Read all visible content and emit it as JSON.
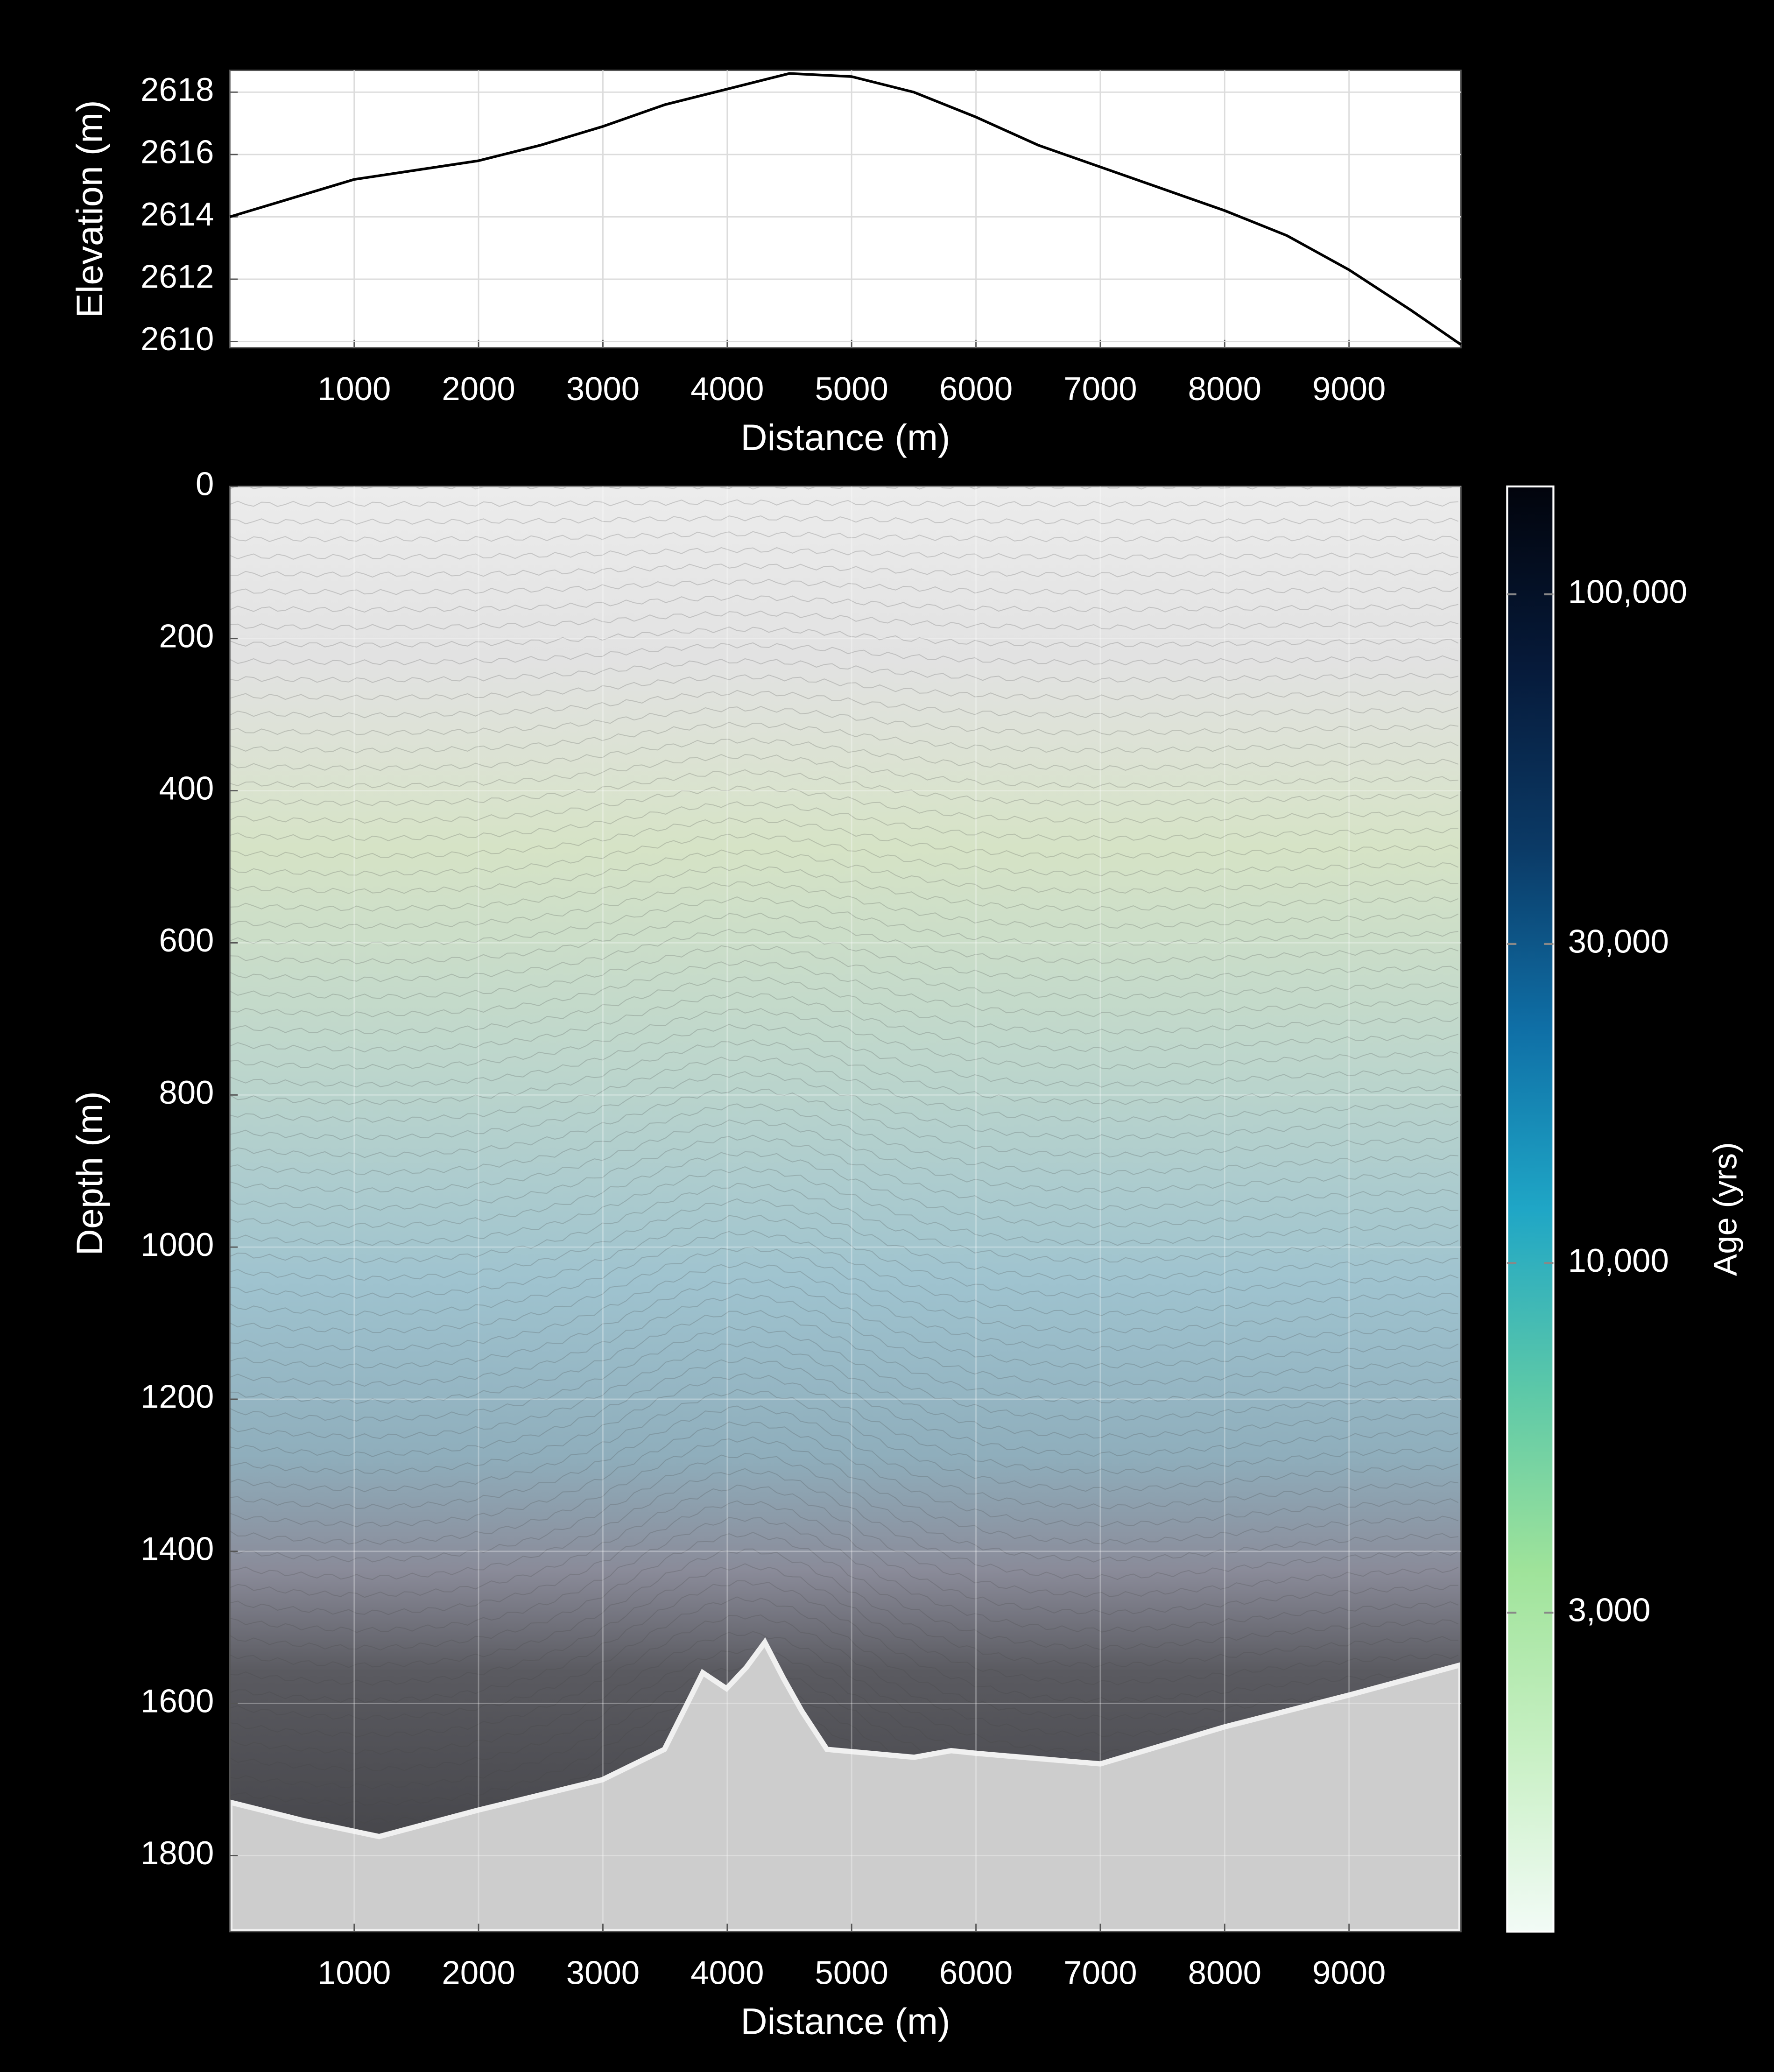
{
  "chart_data": [
    {
      "type": "line",
      "xlabel": "Distance (m)",
      "ylabel": "Elevation (m)",
      "color": "#000000",
      "grid": true,
      "x": [
        0,
        500,
        1000,
        1500,
        2000,
        2500,
        3000,
        3500,
        4000,
        4500,
        5000,
        5500,
        6000,
        6500,
        7000,
        7500,
        8000,
        8500,
        9000,
        9500,
        9900
      ],
      "values": [
        2614.0,
        2614.6,
        2615.2,
        2615.5,
        2615.8,
        2616.3,
        2616.9,
        2617.6,
        2618.1,
        2618.6,
        2618.5,
        2618.0,
        2617.2,
        2616.3,
        2615.6,
        2614.9,
        2614.2,
        2613.4,
        2612.3,
        2611.0,
        2609.9
      ],
      "xlim": [
        0,
        9900
      ],
      "ylim": [
        2609.8,
        2618.7
      ],
      "xticks": [
        1000,
        2000,
        3000,
        4000,
        5000,
        6000,
        7000,
        8000,
        9000
      ],
      "yticks": [
        2610,
        2612,
        2614,
        2616,
        2618
      ]
    },
    {
      "type": "image",
      "xlabel": "Distance (m)",
      "ylabel": "Depth (m)",
      "grid": true,
      "y_inverted": true,
      "xlim": [
        0,
        9900
      ],
      "ylim": [
        0,
        1900
      ],
      "xticks": [
        1000,
        2000,
        3000,
        4000,
        5000,
        6000,
        7000,
        8000,
        9000
      ],
      "yticks": [
        0,
        200,
        400,
        600,
        800,
        1000,
        1200,
        1400,
        1600,
        1800
      ],
      "colorbar": {
        "label": "Age (yrs)",
        "log_scale": true,
        "lim": [
          1000,
          145000
        ],
        "colors": [
          "#f2fbf6",
          "#c8f0c4",
          "#9fe39a",
          "#5cc8a8",
          "#1fa6c6",
          "#0f6fa6",
          "#0b3a66",
          "#061a3a",
          "#02040c"
        ],
        "ticks": [
          {
            "value": 3000,
            "label": "3,000"
          },
          {
            "value": 10000,
            "label": "10,000"
          },
          {
            "value": 30000,
            "label": "30,000"
          },
          {
            "value": 100000,
            "label": "100,000"
          }
        ]
      }
    }
  ]
}
